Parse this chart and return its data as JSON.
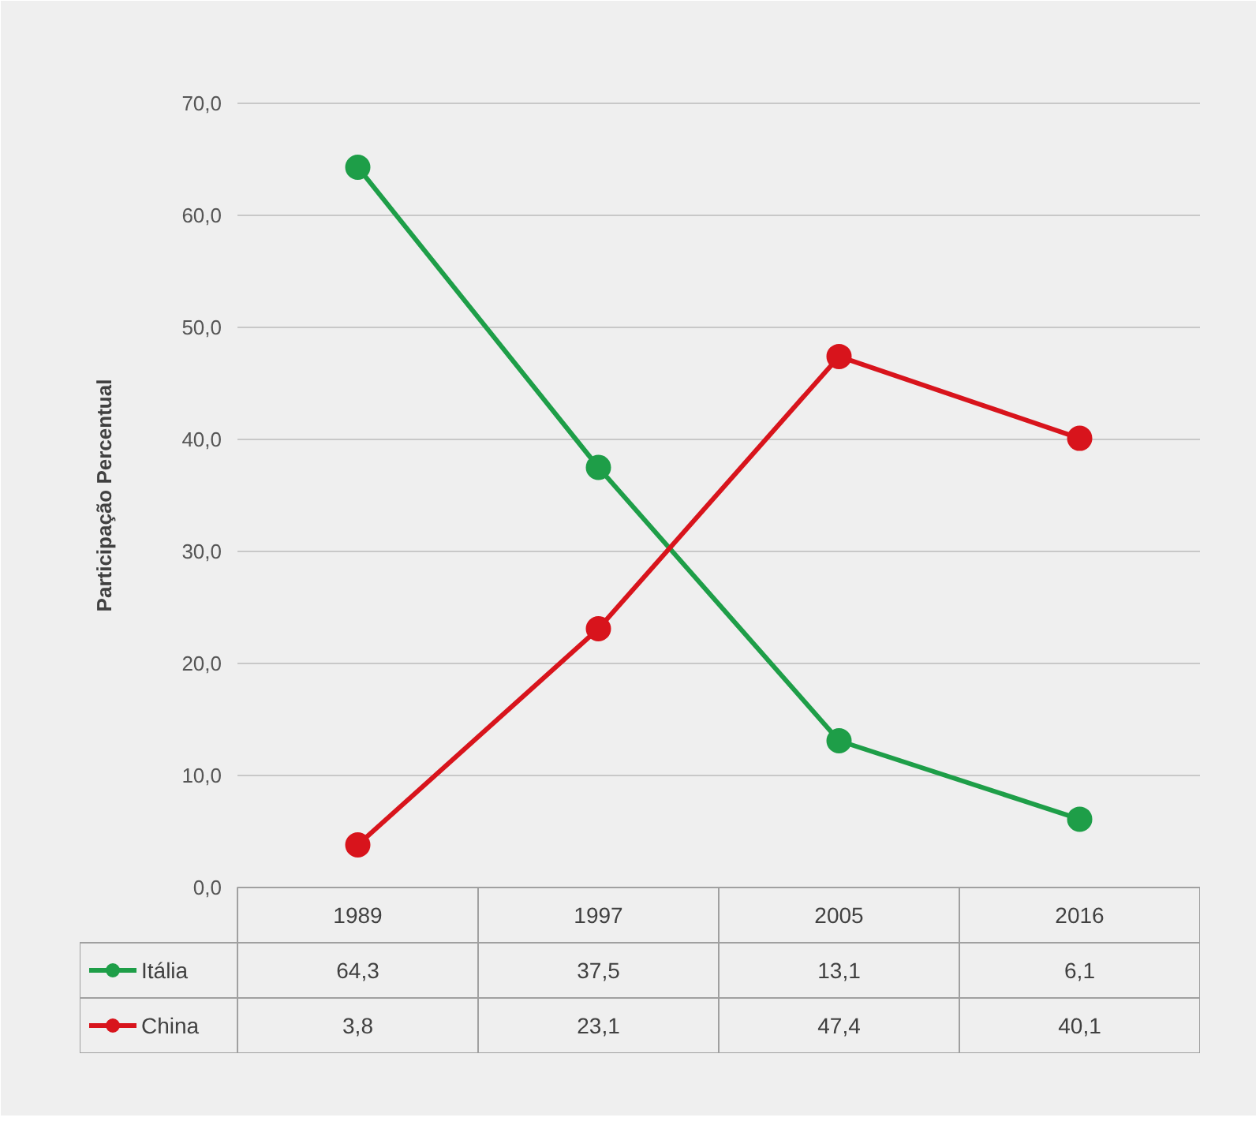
{
  "chart_data": {
    "type": "line",
    "ylabel": "Participação Percentual",
    "categories": [
      "1989",
      "1997",
      "2005",
      "2016"
    ],
    "series": [
      {
        "name": "Itália",
        "color": "#1e9e48",
        "values": [
          64.3,
          37.5,
          13.1,
          6.1
        ],
        "value_labels": [
          "64,3",
          "37,5",
          "13,1",
          "6,1"
        ]
      },
      {
        "name": "China",
        "color": "#d8141c",
        "values": [
          3.8,
          23.1,
          47.4,
          40.1
        ],
        "value_labels": [
          "3,8",
          "23,1",
          "47,4",
          "40,1"
        ]
      }
    ],
    "ylim": [
      0,
      70
    ],
    "yticks": [
      {
        "value": 0,
        "label": "0,0"
      },
      {
        "value": 10,
        "label": "10,0"
      },
      {
        "value": 20,
        "label": "20,0"
      },
      {
        "value": 30,
        "label": "30,0"
      },
      {
        "value": 40,
        "label": "40,0"
      },
      {
        "value": 50,
        "label": "50,0"
      },
      {
        "value": 60,
        "label": "60,0"
      },
      {
        "value": 70,
        "label": "70,0"
      }
    ],
    "grid": "y",
    "legend": "bottom",
    "marker": "circle"
  }
}
